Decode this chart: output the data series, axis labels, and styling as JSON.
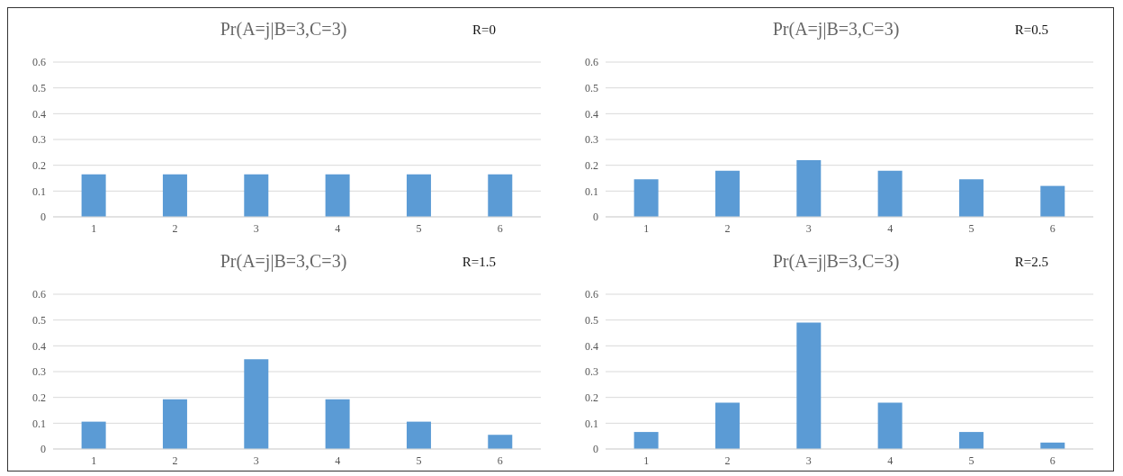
{
  "chart_data": [
    {
      "type": "bar",
      "title": "Pr(A=j|B=3,C=3)",
      "annotations": [
        "R=0"
      ],
      "categories": [
        "1",
        "2",
        "3",
        "4",
        "5",
        "6"
      ],
      "values": [
        0.165,
        0.165,
        0.165,
        0.165,
        0.165,
        0.165
      ],
      "color": "#5b9bd5",
      "ylim": [
        0,
        0.6
      ],
      "yticks": [
        0,
        0.1,
        0.2,
        0.3,
        0.4,
        0.5,
        0.6
      ],
      "grid": "y"
    },
    {
      "type": "bar",
      "title": "Pr(A=j|B=3,C=3)",
      "annotations": [
        "R=0.5"
      ],
      "categories": [
        "1",
        "2",
        "3",
        "4",
        "5",
        "6"
      ],
      "values": [
        0.146,
        0.179,
        0.22,
        0.179,
        0.146,
        0.12
      ],
      "color": "#5b9bd5",
      "ylim": [
        0,
        0.6
      ],
      "yticks": [
        0,
        0.1,
        0.2,
        0.3,
        0.4,
        0.5,
        0.6
      ],
      "grid": "y"
    },
    {
      "type": "bar",
      "title": "Pr(A=j|B=3,C=3)",
      "annotations": [
        "R=1.5"
      ],
      "categories": [
        "1",
        "2",
        "3",
        "4",
        "5",
        "6"
      ],
      "values": [
        0.106,
        0.193,
        0.348,
        0.193,
        0.106,
        0.055
      ],
      "color": "#5b9bd5",
      "ylim": [
        0,
        0.6
      ],
      "yticks": [
        0,
        0.1,
        0.2,
        0.3,
        0.4,
        0.5,
        0.6
      ],
      "grid": "y"
    },
    {
      "type": "bar",
      "title": "Pr(A=j|B=3,C=3)",
      "annotations": [
        "R=2.5"
      ],
      "categories": [
        "1",
        "2",
        "3",
        "4",
        "5",
        "6"
      ],
      "values": [
        0.066,
        0.18,
        0.49,
        0.18,
        0.066,
        0.025
      ],
      "color": "#5b9bd5",
      "ylim": [
        0,
        0.6
      ],
      "yticks": [
        0,
        0.1,
        0.2,
        0.3,
        0.4,
        0.5,
        0.6
      ],
      "grid": "y"
    }
  ]
}
